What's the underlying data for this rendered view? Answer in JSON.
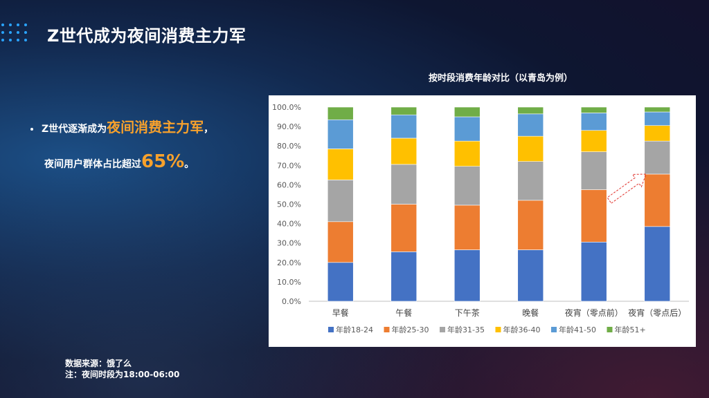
{
  "page": {
    "title": "Z世代成为夜间消费主力军",
    "bullet": {
      "text_before": "Z世代逐渐成为",
      "highlight": "夜间消费主力军",
      "text_after": "，",
      "line2_before": "夜间用户群体占比超过",
      "line2_highlight": "65%",
      "line2_after": "。"
    },
    "footnote": {
      "source": "数据来源：饿了么",
      "note": "注：夜间时段为18:00-06:00"
    }
  },
  "colors": {
    "accent": "#f7a12c",
    "series": [
      "#4472c4",
      "#ed7d31",
      "#a5a5a5",
      "#ffc000",
      "#5b9bd5",
      "#70ad47"
    ],
    "arrow": "#e0302a"
  },
  "chart_data": {
    "type": "bar",
    "stacked": true,
    "percent": true,
    "title": "按时段消费年龄对比（以青岛为例）",
    "categories": [
      "早餐",
      "午餐",
      "下午茶",
      "晚餐",
      "夜宵（零点前）",
      "夜宵（零点后）"
    ],
    "ylim": [
      0,
      100
    ],
    "yticks": [
      "0.0%",
      "10.0%",
      "20.0%",
      "30.0%",
      "40.0%",
      "50.0%",
      "60.0%",
      "70.0%",
      "80.0%",
      "90.0%",
      "100.0%"
    ],
    "series": [
      {
        "name": "年龄18-24",
        "values": [
          20.0,
          25.5,
          26.5,
          26.5,
          30.5,
          38.5
        ]
      },
      {
        "name": "年龄25-30",
        "values": [
          21.0,
          24.5,
          23.0,
          25.5,
          27.0,
          27.0
        ]
      },
      {
        "name": "年龄31-35",
        "values": [
          21.5,
          20.5,
          20.0,
          20.0,
          19.5,
          17.0
        ]
      },
      {
        "name": "年龄36-40",
        "values": [
          16.0,
          13.5,
          13.0,
          13.0,
          11.0,
          8.0
        ]
      },
      {
        "name": "年龄41-50",
        "values": [
          15.0,
          12.0,
          12.5,
          11.5,
          9.0,
          7.0
        ]
      },
      {
        "name": "年龄51+",
        "values": [
          6.5,
          4.0,
          5.0,
          3.5,
          3.0,
          2.5
        ]
      }
    ],
    "legend_position": "bottom",
    "grid": false
  }
}
